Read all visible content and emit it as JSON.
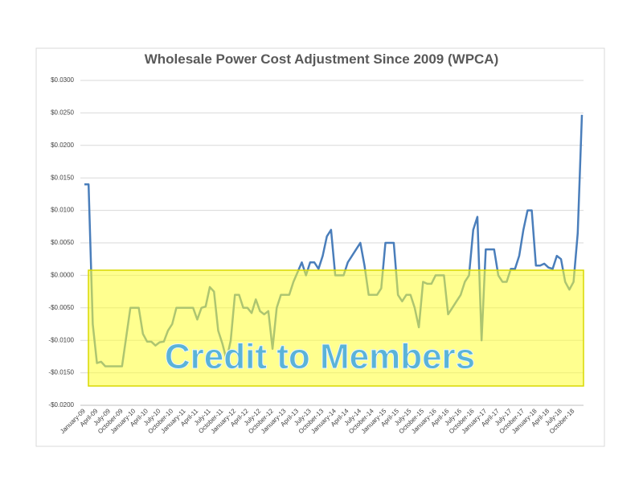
{
  "chart_data": {
    "type": "line",
    "title": "Wholesale Power Cost Adjustment Since 2009 (WPCA)",
    "annotation": "Credit to Members",
    "categories": [
      "January-09",
      null,
      null,
      "April-09",
      null,
      null,
      "July-09",
      null,
      null,
      "October-09",
      null,
      null,
      "January-10",
      null,
      null,
      "April-10",
      null,
      null,
      "July-10",
      null,
      null,
      "October-10",
      null,
      null,
      "January-11",
      null,
      null,
      "April-11",
      null,
      null,
      "July-11",
      null,
      null,
      "October-11",
      null,
      null,
      "January-12",
      null,
      null,
      "April-12",
      null,
      null,
      "July-12",
      null,
      null,
      "October-12",
      null,
      null,
      "January-13",
      null,
      null,
      "April-13",
      null,
      null,
      "July-13",
      null,
      null,
      "October-13",
      null,
      null,
      "January-14",
      null,
      null,
      "April-14",
      null,
      null,
      "July-14",
      null,
      null,
      "October-14",
      null,
      null,
      "January-15",
      null,
      null,
      "April-15",
      null,
      null,
      "July-15",
      null,
      null,
      "October-15",
      null,
      null,
      "January-16",
      null,
      null,
      "April-16",
      null,
      null,
      "July-16",
      null,
      null,
      "October-16",
      null,
      null,
      "January-17",
      null,
      null,
      "April-17",
      null,
      null,
      "July-17",
      null,
      null,
      "October-17",
      null,
      null,
      "January-18",
      null,
      null,
      "April-18",
      null,
      null,
      "July-18",
      null,
      null,
      "October-18",
      null,
      null
    ],
    "series": [
      {
        "color": "#4a7ebb",
        "values": [
          0.014,
          0.014,
          -0.0075,
          -0.0135,
          -0.0133,
          -0.014,
          -0.014,
          -0.014,
          -0.014,
          -0.014,
          -0.0095,
          -0.005,
          -0.005,
          -0.005,
          -0.009,
          -0.0102,
          -0.0102,
          -0.0108,
          -0.0103,
          -0.0102,
          -0.0085,
          -0.0075,
          -0.005,
          -0.005,
          -0.005,
          -0.005,
          -0.005,
          -0.0068,
          -0.005,
          -0.0048,
          -0.0018,
          -0.0025,
          -0.0085,
          -0.0105,
          -0.013,
          -0.01,
          -0.003,
          -0.003,
          -0.005,
          -0.005,
          -0.0058,
          -0.0037,
          -0.0055,
          -0.006,
          -0.0055,
          -0.0113,
          -0.005,
          -0.003,
          -0.003,
          -0.003,
          -0.001,
          0.0005,
          0.002,
          0.0,
          0.002,
          0.002,
          0.001,
          0.003,
          0.006,
          0.007,
          0.0,
          0.0,
          0.0,
          0.002,
          0.003,
          0.004,
          0.005,
          0.0015,
          -0.003,
          -0.003,
          -0.003,
          -0.002,
          0.005,
          0.005,
          0.005,
          -0.003,
          -0.004,
          -0.003,
          -0.003,
          -0.005,
          -0.008,
          -0.001,
          -0.0013,
          -0.0013,
          0.0,
          0.0,
          0.0,
          -0.006,
          -0.005,
          -0.004,
          -0.003,
          -0.001,
          0.0,
          0.007,
          0.009,
          -0.01,
          0.004,
          0.004,
          0.004,
          0.0,
          -0.001,
          -0.001,
          0.001,
          0.001,
          0.003,
          0.007,
          0.01,
          0.01,
          0.0015,
          0.0015,
          0.0018,
          0.0012,
          0.001,
          0.003,
          0.0025,
          -0.001,
          -0.0022,
          -0.001,
          0.0065,
          0.0247
        ]
      }
    ],
    "ylim": [
      -0.02,
      0.03
    ],
    "yticks": [
      {
        "value": -0.02,
        "label": "-$0.0200"
      },
      {
        "value": -0.015,
        "label": "-$0.0150"
      },
      {
        "value": -0.01,
        "label": "-$0.0100"
      },
      {
        "value": -0.005,
        "label": "-$0.0050"
      },
      {
        "value": 0,
        "label": "$0.0000"
      },
      {
        "value": 0.005,
        "label": "$0.0050"
      },
      {
        "value": 0.01,
        "label": "$0.0100"
      },
      {
        "value": 0.015,
        "label": "$0.0150"
      },
      {
        "value": 0.02,
        "label": "$0.0200"
      },
      {
        "value": 0.025,
        "label": "$0.0250"
      },
      {
        "value": 0.03,
        "label": "$0.0300"
      }
    ],
    "grid": true
  }
}
